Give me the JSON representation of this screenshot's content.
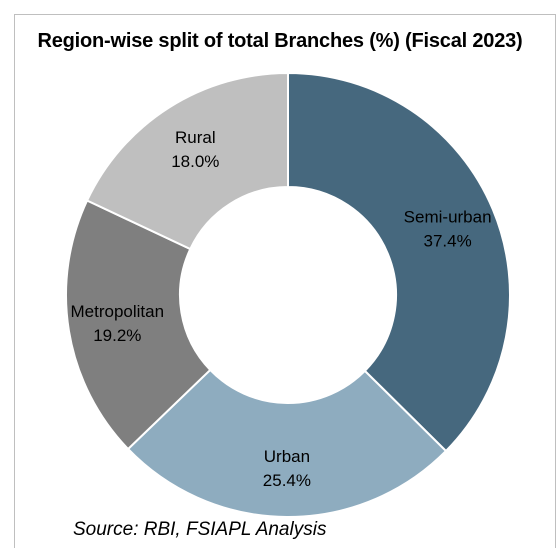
{
  "chart_data": {
    "type": "pie",
    "variant": "donut",
    "title": "Region-wise split of total Branches (%) (Fiscal 2023)",
    "source": "Source: RBI, FSIAPL Analysis",
    "unit": "%",
    "slices": [
      {
        "name": "Semi-urban",
        "value": 37.4,
        "label": "37.4%",
        "color": "#46687e"
      },
      {
        "name": "Urban",
        "value": 25.4,
        "label": "25.4%",
        "color": "#8eacbf"
      },
      {
        "name": "Metropolitan",
        "value": 19.2,
        "label": "19.2%",
        "color": "#7f7f7f"
      },
      {
        "name": "Rural",
        "value": 18.0,
        "label": "18.0%",
        "color": "#bfbfbf"
      }
    ],
    "legend": "none",
    "slice_border_color": "#ffffff"
  }
}
